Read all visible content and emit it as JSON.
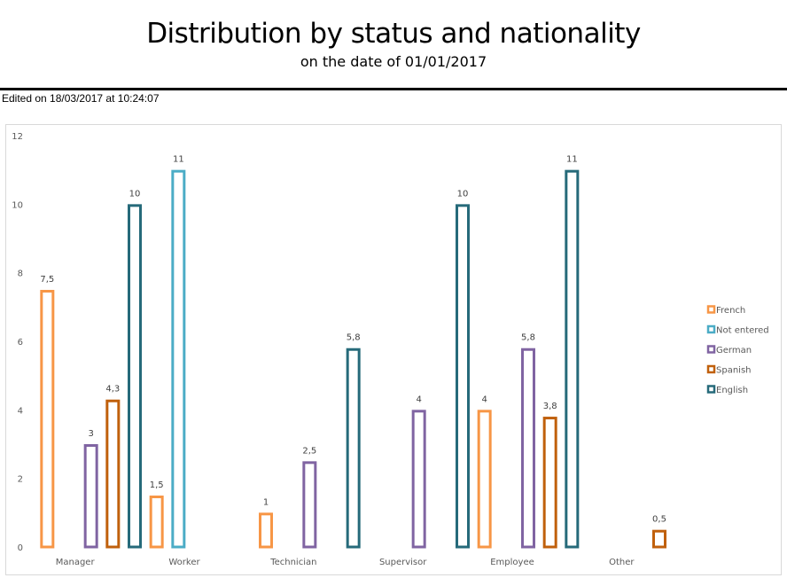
{
  "header": {
    "title": "Distribution by status and nationality",
    "subtitle": "on the date of 01/01/2017",
    "edited": "Edited on 18/03/2017 at 10:24:07"
  },
  "chart_data": {
    "type": "bar",
    "title": "Distribution by status and nationality",
    "subtitle": "on the date of 01/01/2017",
    "xlabel": "",
    "ylabel": "",
    "ylim": [
      0,
      12
    ],
    "yticks": [
      0,
      2,
      4,
      6,
      8,
      10,
      12
    ],
    "ytick_labels": [
      "0",
      "2",
      "4",
      "6",
      "8",
      "10",
      "12"
    ],
    "grid": false,
    "legend_position": "right",
    "categories": [
      "Manager",
      "Worker",
      "Technician",
      "Supervisor",
      "Employee",
      "Other"
    ],
    "series": [
      {
        "name": "French",
        "color": "#F79646",
        "values": [
          7.5,
          1.5,
          1,
          null,
          4,
          null
        ],
        "labels": [
          "7,5",
          "1,5",
          "1",
          "",
          "4",
          ""
        ]
      },
      {
        "name": "Not entered",
        "color": "#4BACC6",
        "values": [
          null,
          11,
          null,
          null,
          null,
          null
        ],
        "labels": [
          "",
          "11",
          "",
          "",
          "",
          ""
        ]
      },
      {
        "name": "German",
        "color": "#8064A2",
        "values": [
          3,
          null,
          2.5,
          4,
          5.8,
          null
        ],
        "labels": [
          "3",
          "",
          "2,5",
          "4",
          "5,8",
          ""
        ]
      },
      {
        "name": "Spanish",
        "color": "#C0600C",
        "values": [
          4.3,
          null,
          null,
          null,
          3.8,
          0.5
        ],
        "labels": [
          "4,3",
          "",
          "",
          "",
          "3,8",
          "0,5"
        ]
      },
      {
        "name": "English",
        "color": "#266A7A",
        "values": [
          10,
          null,
          5.8,
          10,
          11,
          null
        ],
        "labels": [
          "10",
          "",
          "5,8",
          "10",
          "11",
          ""
        ]
      }
    ]
  }
}
